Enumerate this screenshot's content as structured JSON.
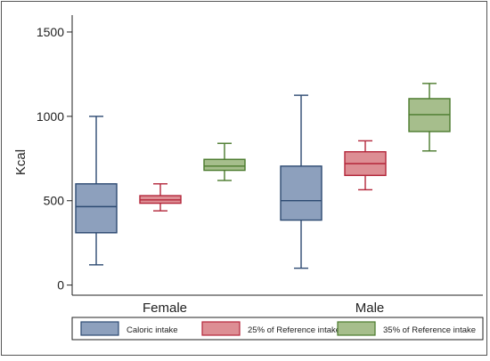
{
  "chart_data": {
    "type": "box",
    "ylabel": "Kcal",
    "ylim": [
      -60,
      1600
    ],
    "yticks": [
      0,
      500,
      1000,
      1500
    ],
    "grid": false,
    "legend_position": "bottom",
    "categories": [
      "Female",
      "Male"
    ],
    "series": [
      {
        "name": "Caloric intake",
        "fill": "#8da0bd",
        "stroke": "#2d4a72",
        "boxes": [
          {
            "category": "Female",
            "min": 120,
            "q1": 310,
            "median": 465,
            "q3": 600,
            "max": 1000
          },
          {
            "category": "Male",
            "min": 100,
            "q1": 385,
            "median": 500,
            "q3": 705,
            "max": 1125
          }
        ]
      },
      {
        "name": "25% of Reference intake",
        "fill": "#dd8e94",
        "stroke": "#b3263a",
        "boxes": [
          {
            "category": "Female",
            "min": 440,
            "q1": 485,
            "median": 505,
            "q3": 530,
            "max": 600
          },
          {
            "category": "Male",
            "min": 565,
            "q1": 650,
            "median": 720,
            "q3": 790,
            "max": 855
          }
        ]
      },
      {
        "name": "35% of Reference intake",
        "fill": "#a6be8c",
        "stroke": "#4a7a2c",
        "boxes": [
          {
            "category": "Female",
            "min": 620,
            "q1": 680,
            "median": 705,
            "q3": 745,
            "max": 840
          },
          {
            "category": "Male",
            "min": 795,
            "q1": 910,
            "median": 1010,
            "q3": 1105,
            "max": 1195
          }
        ]
      }
    ]
  }
}
